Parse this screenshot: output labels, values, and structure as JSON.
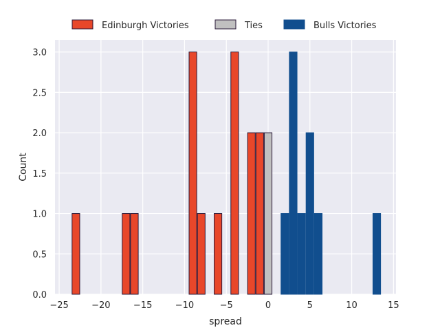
{
  "chart_data": {
    "type": "bar",
    "title": "",
    "xlabel": "spread",
    "ylabel": "Count",
    "xlim": [
      -25.5,
      15.3
    ],
    "ylim": [
      0,
      3.15
    ],
    "xticks": [
      -25,
      -20,
      -15,
      -10,
      -5,
      0,
      5,
      10,
      15
    ],
    "yticks": [
      0.0,
      0.5,
      1.0,
      1.5,
      2.0,
      2.5,
      3.0
    ],
    "ytick_labels": [
      "0.0",
      "0.5",
      "1.0",
      "1.5",
      "2.0",
      "2.5",
      "3.0"
    ],
    "bar_width": 1,
    "grid": true,
    "legend_position": "top-center",
    "series": [
      {
        "name": "Edinburgh Victories",
        "color": "#e8472a",
        "edge_color": "#2a1a3a",
        "x": [
          -23,
          -17,
          -16,
          -9,
          -8,
          -6,
          -4,
          -2,
          -1
        ],
        "values": [
          1,
          1,
          1,
          3,
          1,
          1,
          3,
          2,
          2
        ]
      },
      {
        "name": "Ties",
        "color": "#c0c0c0",
        "edge_color": "#2a1a3a",
        "x": [
          0
        ],
        "values": [
          2
        ]
      },
      {
        "name": "Bulls Victories",
        "color": "#114e8e",
        "edge_color": "#114e8e",
        "x": [
          2,
          3,
          4,
          5,
          6,
          13
        ],
        "values": [
          1,
          3,
          1,
          2,
          1,
          1
        ]
      }
    ]
  }
}
